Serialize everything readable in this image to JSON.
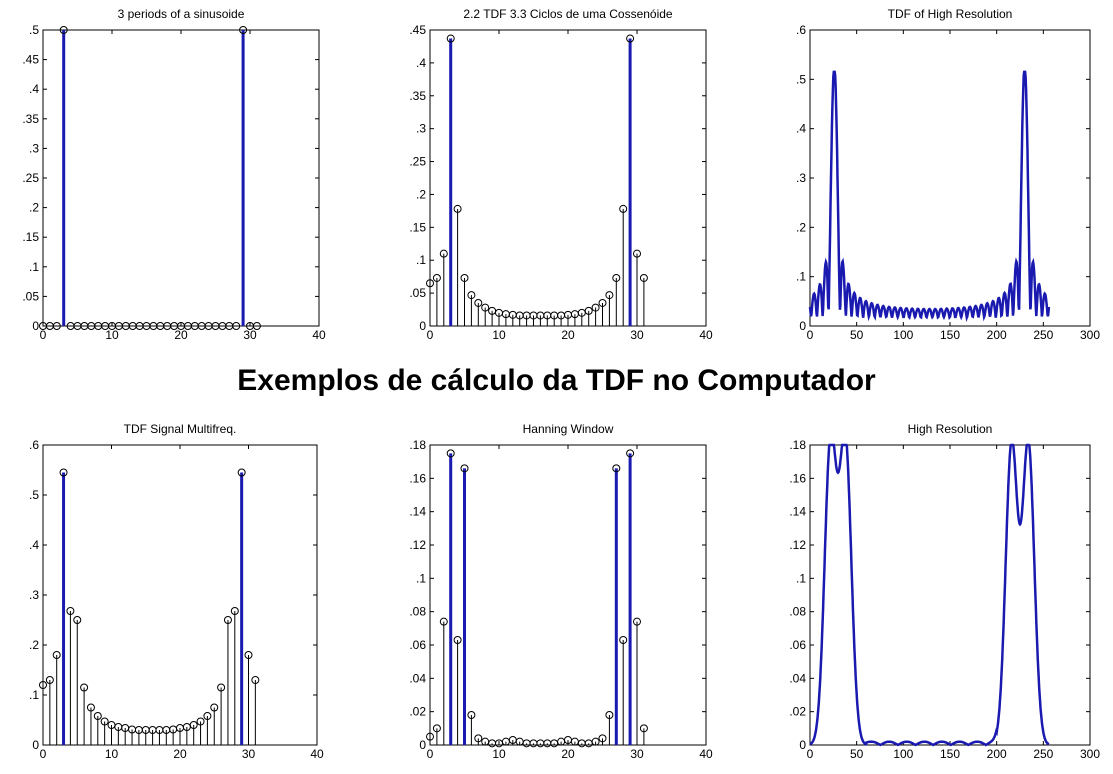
{
  "figure": {
    "main_title": "Exemplos de cálculo da TDF no Computador",
    "accent_color": "#1a1ab0",
    "stem_color": "#000000"
  },
  "chart_data": [
    {
      "type": "stem",
      "title": "3 periods of a sinusoide",
      "xlim": [
        0,
        40
      ],
      "ylim": [
        0,
        0.5
      ],
      "xticks": [
        0,
        10,
        20,
        30,
        40
      ],
      "yticks": [
        0,
        0.05,
        0.1,
        0.15,
        0.2,
        0.25,
        0.3,
        0.35,
        0.4,
        0.45,
        0.5
      ],
      "x": [
        0,
        1,
        2,
        3,
        4,
        5,
        6,
        7,
        8,
        9,
        10,
        11,
        12,
        13,
        14,
        15,
        16,
        17,
        18,
        19,
        20,
        21,
        22,
        23,
        24,
        25,
        26,
        27,
        28,
        29,
        30,
        31
      ],
      "y": [
        0,
        0,
        0,
        0.5,
        0,
        0,
        0,
        0,
        0,
        0,
        0,
        0,
        0,
        0,
        0,
        0,
        0,
        0,
        0,
        0,
        0,
        0,
        0,
        0,
        0,
        0,
        0,
        0,
        0,
        0.5,
        0,
        0
      ],
      "highlight": [
        3,
        29
      ]
    },
    {
      "type": "stem",
      "title": "2.2 TDF 3.3 Ciclos de uma Cossenóide",
      "xlim": [
        0,
        40
      ],
      "ylim": [
        0,
        0.45
      ],
      "xticks": [
        0,
        10,
        20,
        30,
        40
      ],
      "yticks": [
        0,
        0.05,
        0.1,
        0.15,
        0.2,
        0.25,
        0.3,
        0.35,
        0.4,
        0.45
      ],
      "x": [
        0,
        1,
        2,
        3,
        4,
        5,
        6,
        7,
        8,
        9,
        10,
        11,
        12,
        13,
        14,
        15,
        16,
        17,
        18,
        19,
        20,
        21,
        22,
        23,
        24,
        25,
        26,
        27,
        28,
        29,
        30,
        31
      ],
      "y": [
        0.065,
        0.073,
        0.11,
        0.437,
        0.178,
        0.073,
        0.047,
        0.035,
        0.028,
        0.023,
        0.02,
        0.018,
        0.017,
        0.016,
        0.016,
        0.016,
        0.016,
        0.016,
        0.016,
        0.016,
        0.017,
        0.018,
        0.02,
        0.023,
        0.028,
        0.035,
        0.047,
        0.073,
        0.178,
        0.437,
        0.11,
        0.073
      ],
      "highlight": [
        3,
        29
      ]
    },
    {
      "type": "line",
      "title": "TDF of High Resolution",
      "xlim": [
        0,
        300
      ],
      "ylim": [
        0,
        0.6
      ],
      "xticks": [
        0,
        50,
        100,
        150,
        200,
        250,
        300
      ],
      "yticks": [
        0,
        0.1,
        0.2,
        0.3,
        0.4,
        0.5,
        0.6
      ],
      "peaks": [
        26,
        230
      ],
      "peak_value": 0.51
    },
    {
      "type": "stem",
      "title": "TDF Signal Multifreq.",
      "xlim": [
        0,
        40
      ],
      "ylim": [
        0,
        0.6
      ],
      "xticks": [
        0,
        10,
        20,
        30,
        40
      ],
      "yticks": [
        0,
        0.1,
        0.2,
        0.3,
        0.4,
        0.5,
        0.6
      ],
      "x": [
        0,
        1,
        2,
        3,
        4,
        5,
        6,
        7,
        8,
        9,
        10,
        11,
        12,
        13,
        14,
        15,
        16,
        17,
        18,
        19,
        20,
        21,
        22,
        23,
        24,
        25,
        26,
        27,
        28,
        29,
        30,
        31
      ],
      "y": [
        0.12,
        0.13,
        0.18,
        0.545,
        0.268,
        0.25,
        0.115,
        0.075,
        0.058,
        0.047,
        0.04,
        0.036,
        0.034,
        0.031,
        0.03,
        0.03,
        0.03,
        0.03,
        0.03,
        0.031,
        0.034,
        0.036,
        0.04,
        0.047,
        0.058,
        0.075,
        0.115,
        0.25,
        0.268,
        0.545,
        0.18,
        0.13
      ],
      "highlight": [
        3,
        29
      ]
    },
    {
      "type": "stem",
      "title": "Hanning Window",
      "xlim": [
        0,
        40
      ],
      "ylim": [
        0,
        0.18
      ],
      "xticks": [
        0,
        10,
        20,
        30,
        40
      ],
      "yticks": [
        0,
        0.02,
        0.04,
        0.06,
        0.08,
        0.1,
        0.12,
        0.14,
        0.16,
        0.18
      ],
      "x": [
        0,
        1,
        2,
        3,
        4,
        5,
        6,
        7,
        8,
        9,
        10,
        11,
        12,
        13,
        14,
        15,
        16,
        17,
        18,
        19,
        20,
        21,
        22,
        23,
        24,
        25,
        26,
        27,
        28,
        29,
        30,
        31
      ],
      "y": [
        0.005,
        0.01,
        0.074,
        0.175,
        0.063,
        0.166,
        0.018,
        0.004,
        0.002,
        0.001,
        0.001,
        0.002,
        0.003,
        0.002,
        0.001,
        0.001,
        0.001,
        0.001,
        0.001,
        0.002,
        0.003,
        0.002,
        0.001,
        0.001,
        0.002,
        0.004,
        0.018,
        0.166,
        0.063,
        0.175,
        0.074,
        0.01
      ],
      "highlight": [
        3,
        5,
        27,
        29
      ]
    },
    {
      "type": "line",
      "title": "High Resolution",
      "xlim": [
        0,
        300
      ],
      "ylim": [
        0,
        0.18
      ],
      "xticks": [
        0,
        50,
        100,
        150,
        200,
        250,
        300
      ],
      "yticks": [
        0,
        0.02,
        0.04,
        0.06,
        0.08,
        0.1,
        0.12,
        0.14,
        0.16,
        0.18
      ],
      "peaks": [
        22,
        38,
        216,
        234
      ],
      "peak_value": 0.18
    }
  ]
}
